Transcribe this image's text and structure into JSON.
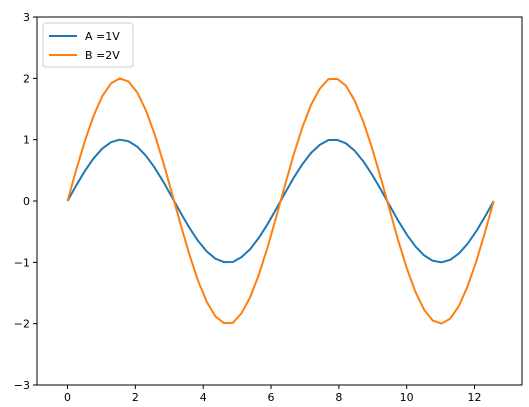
{
  "chart_data": {
    "type": "line",
    "title": "",
    "xlabel": "",
    "ylabel": "",
    "xlim": [
      -0.9,
      13.4
    ],
    "ylim": [
      -3,
      3
    ],
    "xticks": [
      0,
      2,
      4,
      6,
      8,
      10,
      12
    ],
    "yticks": [
      -3,
      -2,
      -1,
      0,
      1,
      2,
      3
    ],
    "legend_position": "top-left",
    "grid": false,
    "series": [
      {
        "name": "A =1V",
        "color": "#1f77b4",
        "x": [
          0.0,
          0.2565,
          0.5129,
          0.7694,
          1.0258,
          1.2823,
          1.5387,
          1.7952,
          2.0516,
          2.3081,
          2.5646,
          2.821,
          3.0775,
          3.3339,
          3.5904,
          3.8468,
          4.1033,
          4.3597,
          4.6162,
          4.8727,
          5.1291,
          5.3856,
          5.642,
          5.8985,
          6.1549,
          6.4114,
          6.6678,
          6.9243,
          7.1808,
          7.4372,
          7.6937,
          7.9501,
          8.2066,
          8.463,
          8.7195,
          8.9759,
          9.2324,
          9.4889,
          9.7453,
          10.0018,
          10.2582,
          10.5147,
          10.7711,
          11.0276,
          11.284,
          11.5405,
          11.797,
          12.0534,
          12.3099,
          12.5664
        ],
        "y": [
          0.0,
          0.2537,
          0.4907,
          0.6957,
          0.8552,
          0.9587,
          0.9995,
          0.9749,
          0.8868,
          0.7407,
          0.5467,
          0.3173,
          0.0641,
          -0.1912,
          -0.4339,
          -0.6485,
          -0.8208,
          -0.9407,
          -0.996,
          -0.9938,
          -0.9152,
          -0.7843,
          -0.5998,
          -0.378,
          -0.1283,
          0.1279,
          0.378,
          0.5998,
          0.7843,
          0.9152,
          0.9938,
          0.996,
          0.9407,
          0.8208,
          0.6485,
          0.4339,
          0.1912,
          -0.0641,
          -0.3173,
          -0.5467,
          -0.7407,
          -0.8868,
          -0.9749,
          -0.9995,
          -0.9587,
          -0.8552,
          -0.6957,
          -0.4907,
          -0.2537,
          0.0
        ]
      },
      {
        "name": "B =2V",
        "color": "#ff7f0e",
        "x": [
          0.0,
          0.2565,
          0.5129,
          0.7694,
          1.0258,
          1.2823,
          1.5387,
          1.7952,
          2.0516,
          2.3081,
          2.5646,
          2.821,
          3.0775,
          3.3339,
          3.5904,
          3.8468,
          4.1033,
          4.3597,
          4.6162,
          4.8727,
          5.1291,
          5.3856,
          5.642,
          5.8985,
          6.1549,
          6.4114,
          6.6678,
          6.9243,
          7.1808,
          7.4372,
          7.6937,
          7.9501,
          8.2066,
          8.463,
          8.7195,
          8.9759,
          9.2324,
          9.4889,
          9.7453,
          10.0018,
          10.2582,
          10.5147,
          10.7711,
          11.0276,
          11.284,
          11.5405,
          11.797,
          12.0534,
          12.3099,
          12.5664
        ],
        "y": [
          0.0,
          0.5074,
          0.9814,
          1.3914,
          1.7104,
          1.9174,
          1.999,
          1.9498,
          1.7736,
          1.4814,
          1.0934,
          0.6346,
          0.1282,
          -0.3824,
          -0.8678,
          -1.297,
          -1.6416,
          -1.8814,
          -1.992,
          -1.9876,
          -1.8304,
          -1.5686,
          -1.1996,
          -0.756,
          -0.2566,
          0.2558,
          0.756,
          1.1996,
          1.5686,
          1.8304,
          1.9876,
          1.992,
          1.8814,
          1.6416,
          1.297,
          0.8678,
          0.3824,
          -0.1282,
          -0.6346,
          -1.0934,
          -1.4814,
          -1.7736,
          -1.9498,
          -1.999,
          -1.9174,
          -1.7104,
          -1.3914,
          -0.9814,
          -0.5074,
          0.0
        ]
      }
    ]
  }
}
